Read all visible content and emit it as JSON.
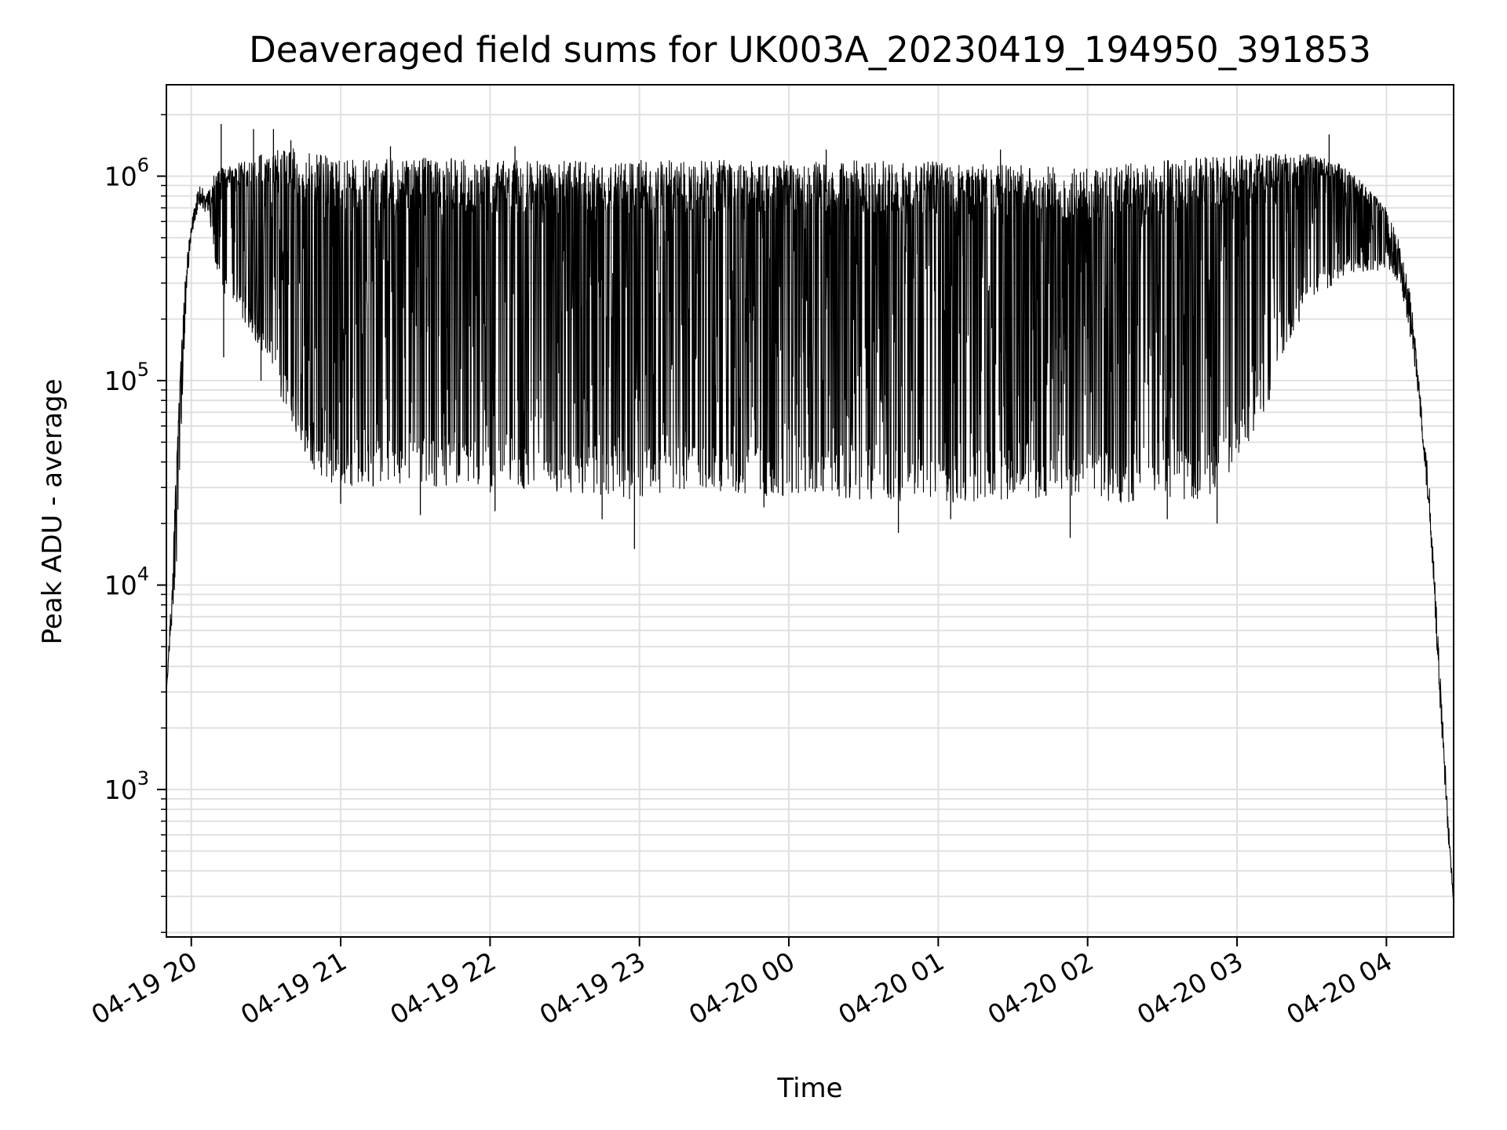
{
  "chart_data": {
    "type": "line",
    "title": "Deaveraged field sums for UK003A_20230419_194950_391853",
    "xlabel": "Time",
    "ylabel": "Peak ADU - average",
    "y_scale": "log",
    "ylim": [
      190,
      2800000
    ],
    "xlim": [
      "2023-04-19 19:50",
      "2023-04-20 04:27"
    ],
    "grid": true,
    "line_color": "#000000",
    "grid_color": "#e0e0e0",
    "x_ticks": [
      {
        "time": "2023-04-19 20:00",
        "label": "04-19 20"
      },
      {
        "time": "2023-04-19 21:00",
        "label": "04-19 21"
      },
      {
        "time": "2023-04-19 22:00",
        "label": "04-19 22"
      },
      {
        "time": "2023-04-19 23:00",
        "label": "04-19 23"
      },
      {
        "time": "2023-04-20 00:00",
        "label": "04-20 00"
      },
      {
        "time": "2023-04-20 01:00",
        "label": "04-20 01"
      },
      {
        "time": "2023-04-20 02:00",
        "label": "04-20 02"
      },
      {
        "time": "2023-04-20 03:00",
        "label": "04-20 03"
      },
      {
        "time": "2023-04-20 04:00",
        "label": "04-20 04"
      }
    ],
    "y_ticks": [
      {
        "value": 1000,
        "base": "10",
        "exp": "3"
      },
      {
        "value": 10000,
        "base": "10",
        "exp": "4"
      },
      {
        "value": 100000,
        "base": "10",
        "exp": "5"
      },
      {
        "value": 1000000,
        "base": "10",
        "exp": "6"
      }
    ],
    "series": [
      {
        "envelope": [
          {
            "time": "2023-04-19 19:50",
            "low": 3000,
            "high": 3000
          },
          {
            "time": "2023-04-19 19:52",
            "low": 6000,
            "high": 9000
          },
          {
            "time": "2023-04-19 19:54",
            "low": 12000,
            "high": 40000
          },
          {
            "time": "2023-04-19 19:56",
            "low": 60000,
            "high": 150000
          },
          {
            "time": "2023-04-19 19:58",
            "low": 250000,
            "high": 400000
          },
          {
            "time": "2023-04-19 20:00",
            "low": 500000,
            "high": 600000
          },
          {
            "time": "2023-04-19 20:03",
            "low": 700000,
            "high": 900000
          },
          {
            "time": "2023-04-19 20:07",
            "low": 650000,
            "high": 850000
          },
          {
            "time": "2023-04-19 20:10",
            "low": 350000,
            "high": 1100000
          },
          {
            "time": "2023-04-19 20:14",
            "low": 250000,
            "high": 1100000
          },
          {
            "time": "2023-04-19 20:20",
            "low": 200000,
            "high": 1200000
          },
          {
            "time": "2023-04-19 20:30",
            "low": 130000,
            "high": 1300000
          },
          {
            "time": "2023-04-19 20:40",
            "low": 60000,
            "high": 1400000
          },
          {
            "time": "2023-04-19 20:50",
            "low": 35000,
            "high": 1300000
          },
          {
            "time": "2023-04-19 21:00",
            "low": 30000,
            "high": 1200000
          },
          {
            "time": "2023-04-19 21:30",
            "low": 30000,
            "high": 1250000
          },
          {
            "time": "2023-04-19 22:00",
            "low": 28000,
            "high": 1200000
          },
          {
            "time": "2023-04-19 22:30",
            "low": 28000,
            "high": 1200000
          },
          {
            "time": "2023-04-19 23:00",
            "low": 26000,
            "high": 1200000
          },
          {
            "time": "2023-04-19 23:30",
            "low": 28000,
            "high": 1200000
          },
          {
            "time": "2023-04-20 00:00",
            "low": 27000,
            "high": 1200000
          },
          {
            "time": "2023-04-20 00:30",
            "low": 26000,
            "high": 1200000
          },
          {
            "time": "2023-04-20 01:00",
            "low": 25000,
            "high": 1200000
          },
          {
            "time": "2023-04-20 01:30",
            "low": 26000,
            "high": 1150000
          },
          {
            "time": "2023-04-20 02:00",
            "low": 25000,
            "high": 1100000
          },
          {
            "time": "2023-04-20 02:30",
            "low": 25000,
            "high": 1200000
          },
          {
            "time": "2023-04-20 02:50",
            "low": 27000,
            "high": 1250000
          },
          {
            "time": "2023-04-20 03:10",
            "low": 60000,
            "high": 1300000
          },
          {
            "time": "2023-04-20 03:20",
            "low": 150000,
            "high": 1300000
          },
          {
            "time": "2023-04-20 03:30",
            "low": 250000,
            "high": 1300000
          },
          {
            "time": "2023-04-20 03:45",
            "low": 330000,
            "high": 1100000
          },
          {
            "time": "2023-04-20 04:00",
            "low": 350000,
            "high": 700000
          },
          {
            "time": "2023-04-20 04:05",
            "low": 300000,
            "high": 500000
          },
          {
            "time": "2023-04-20 04:10",
            "low": 150000,
            "high": 250000
          },
          {
            "time": "2023-04-20 04:14",
            "low": 60000,
            "high": 80000
          },
          {
            "time": "2023-04-20 04:18",
            "low": 15000,
            "high": 25000
          },
          {
            "time": "2023-04-20 04:22",
            "low": 2000,
            "high": 3000
          },
          {
            "time": "2023-04-20 04:25",
            "low": 500,
            "high": 700
          },
          {
            "time": "2023-04-20 04:27",
            "low": 280,
            "high": 280
          }
        ],
        "dips": [
          {
            "time": "2023-04-19 20:13",
            "value": 130000
          },
          {
            "time": "2023-04-19 20:28",
            "value": 100000
          },
          {
            "time": "2023-04-19 21:00",
            "value": 25000
          },
          {
            "time": "2023-04-19 21:32",
            "value": 22000
          },
          {
            "time": "2023-04-19 22:02",
            "value": 23000
          },
          {
            "time": "2023-04-19 22:45",
            "value": 21000
          },
          {
            "time": "2023-04-19 22:58",
            "value": 15000
          },
          {
            "time": "2023-04-19 23:50",
            "value": 24000
          },
          {
            "time": "2023-04-20 00:44",
            "value": 18000
          },
          {
            "time": "2023-04-20 01:05",
            "value": 21000
          },
          {
            "time": "2023-04-20 01:53",
            "value": 17000
          },
          {
            "time": "2023-04-20 02:32",
            "value": 21000
          },
          {
            "time": "2023-04-20 02:52",
            "value": 20000
          }
        ],
        "peaks": [
          {
            "time": "2023-04-19 20:12",
            "value": 1800000
          },
          {
            "time": "2023-04-19 20:25",
            "value": 1700000
          },
          {
            "time": "2023-04-19 20:33",
            "value": 1700000
          },
          {
            "time": "2023-04-19 20:40",
            "value": 1500000
          },
          {
            "time": "2023-04-19 21:20",
            "value": 1400000
          },
          {
            "time": "2023-04-19 22:10",
            "value": 1400000
          },
          {
            "time": "2023-04-20 00:15",
            "value": 1350000
          },
          {
            "time": "2023-04-20 01:25",
            "value": 1350000
          },
          {
            "time": "2023-04-20 03:37",
            "value": 1600000
          }
        ]
      }
    ]
  }
}
